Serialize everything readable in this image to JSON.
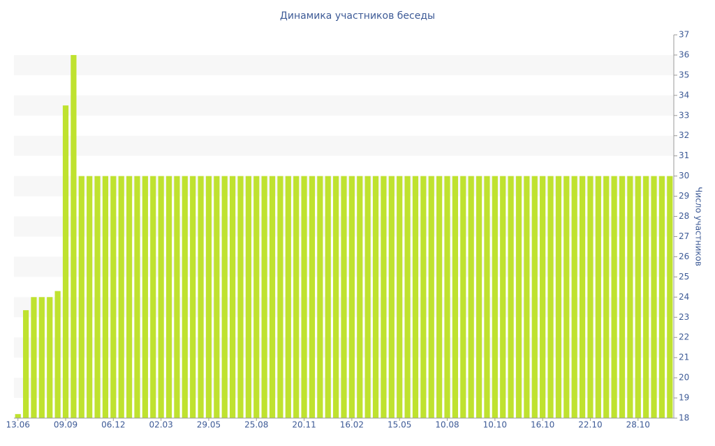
{
  "chart_data": {
    "type": "bar",
    "title": "Динамика участников беседы",
    "y_label": "Число участников",
    "categories": [
      "13.06",
      null,
      null,
      null,
      null,
      null,
      "09.09",
      null,
      null,
      null,
      null,
      null,
      "06.12",
      null,
      null,
      null,
      null,
      null,
      "02.03",
      null,
      null,
      null,
      null,
      null,
      "29.05",
      null,
      null,
      null,
      null,
      null,
      "25.08",
      null,
      null,
      null,
      null,
      null,
      "20.11",
      null,
      null,
      null,
      null,
      null,
      "16.02",
      null,
      null,
      null,
      null,
      null,
      "15.05",
      null,
      null,
      null,
      null,
      null,
      "10.08",
      null,
      null,
      null,
      null,
      null,
      "10.10",
      null,
      null,
      null,
      null,
      null,
      "16.10",
      null,
      null,
      null,
      null,
      null,
      "22.10",
      null,
      null,
      null,
      null,
      null,
      "28.10",
      null,
      null,
      null,
      null
    ],
    "values": [
      18.2,
      23.35,
      24,
      24,
      24,
      24.3,
      33.5,
      36,
      30,
      30,
      30,
      30,
      30,
      30,
      30,
      30,
      30,
      30,
      30,
      30,
      30,
      30,
      30,
      30,
      30,
      30,
      30,
      30,
      30,
      30,
      30,
      30,
      30,
      30,
      30,
      30,
      30,
      30,
      30,
      30,
      30,
      30,
      30,
      30,
      30,
      30,
      30,
      30,
      30,
      30,
      30,
      30,
      30,
      30,
      30,
      30,
      30,
      30,
      30,
      30,
      30,
      30,
      30,
      30,
      30,
      30,
      30,
      30,
      30,
      30,
      30,
      30,
      30,
      30,
      30,
      30,
      30,
      30,
      30,
      30,
      30,
      30,
      30
    ],
    "color": "#bfe22f",
    "ylim": [
      18,
      37
    ],
    "yticks": [
      18,
      19,
      20,
      21,
      22,
      23,
      24,
      25,
      26,
      27,
      28,
      29,
      30,
      31,
      32,
      33,
      34,
      35,
      36,
      37
    ],
    "y_axis_side": "right",
    "grid": "bands"
  }
}
